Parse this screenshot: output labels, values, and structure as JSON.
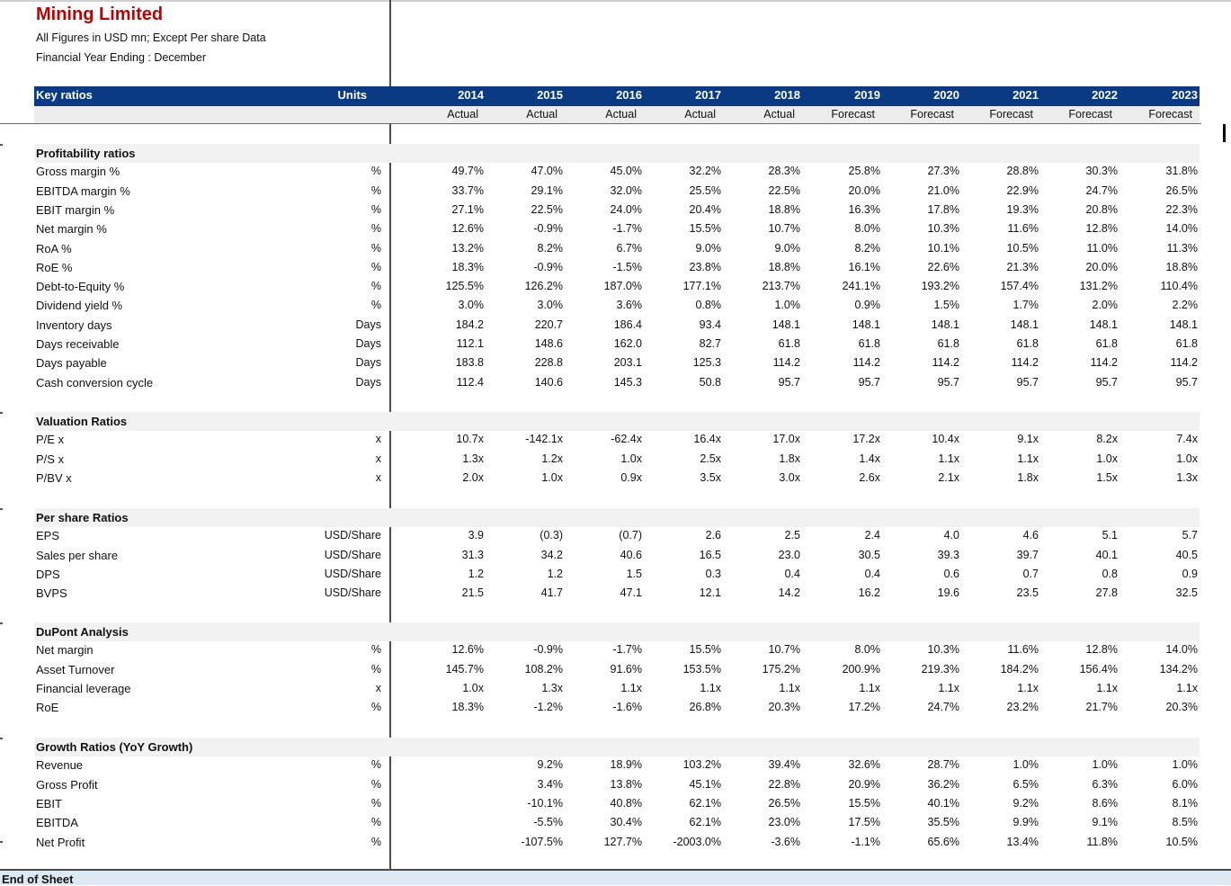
{
  "header": {
    "title": "Mining Limited",
    "subtitle1": "All Figures in USD mn; Except Per share Data",
    "subtitle2": "Financial Year Ending : December",
    "key_ratios_label": "Key ratios",
    "units_label": "Units",
    "years": [
      "2014",
      "2015",
      "2016",
      "2017",
      "2018",
      "2019",
      "2020",
      "2021",
      "2022",
      "2023"
    ],
    "status": [
      "Actual",
      "Actual",
      "Actual",
      "Actual",
      "Actual",
      "Forecast",
      "Forecast",
      "Forecast",
      "Forecast",
      "Forecast"
    ]
  },
  "sections": [
    {
      "title": "Profitability ratios",
      "rows": [
        {
          "label": "Gross margin %",
          "unit": "%",
          "values": [
            "49.7%",
            "47.0%",
            "45.0%",
            "32.2%",
            "28.3%",
            "25.8%",
            "27.3%",
            "28.8%",
            "30.3%",
            "31.8%"
          ]
        },
        {
          "label": "EBITDA margin %",
          "unit": "%",
          "values": [
            "33.7%",
            "29.1%",
            "32.0%",
            "25.5%",
            "22.5%",
            "20.0%",
            "21.0%",
            "22.9%",
            "24.7%",
            "26.5%"
          ]
        },
        {
          "label": "EBIT margin %",
          "unit": "%",
          "values": [
            "27.1%",
            "22.5%",
            "24.0%",
            "20.4%",
            "18.8%",
            "16.3%",
            "17.8%",
            "19.3%",
            "20.8%",
            "22.3%"
          ]
        },
        {
          "label": "Net margin %",
          "unit": "%",
          "values": [
            "12.6%",
            "-0.9%",
            "-1.7%",
            "15.5%",
            "10.7%",
            "8.0%",
            "10.3%",
            "11.6%",
            "12.8%",
            "14.0%"
          ]
        },
        {
          "label": "RoA %",
          "unit": "%",
          "values": [
            "13.2%",
            "8.2%",
            "6.7%",
            "9.0%",
            "9.0%",
            "8.2%",
            "10.1%",
            "10.5%",
            "11.0%",
            "11.3%"
          ]
        },
        {
          "label": "RoE %",
          "unit": "%",
          "values": [
            "18.3%",
            "-0.9%",
            "-1.5%",
            "23.8%",
            "18.8%",
            "16.1%",
            "22.6%",
            "21.3%",
            "20.0%",
            "18.8%"
          ]
        },
        {
          "label": "Debt-to-Equity %",
          "unit": "%",
          "values": [
            "125.5%",
            "126.2%",
            "187.0%",
            "177.1%",
            "213.7%",
            "241.1%",
            "193.2%",
            "157.4%",
            "131.2%",
            "110.4%"
          ]
        },
        {
          "label": "Dividend yield %",
          "unit": "%",
          "values": [
            "3.0%",
            "3.0%",
            "3.6%",
            "0.8%",
            "1.0%",
            "0.9%",
            "1.5%",
            "1.7%",
            "2.0%",
            "2.2%"
          ]
        },
        {
          "label": "Inventory days",
          "unit": "Days",
          "values": [
            "184.2",
            "220.7",
            "186.4",
            "93.4",
            "148.1",
            "148.1",
            "148.1",
            "148.1",
            "148.1",
            "148.1"
          ]
        },
        {
          "label": "Days receivable",
          "unit": "Days",
          "values": [
            "112.1",
            "148.6",
            "162.0",
            "82.7",
            "61.8",
            "61.8",
            "61.8",
            "61.8",
            "61.8",
            "61.8"
          ]
        },
        {
          "label": "Days payable",
          "unit": "Days",
          "values": [
            "183.8",
            "228.8",
            "203.1",
            "125.3",
            "114.2",
            "114.2",
            "114.2",
            "114.2",
            "114.2",
            "114.2"
          ]
        },
        {
          "label": "Cash conversion cycle",
          "unit": "Days",
          "values": [
            "112.4",
            "140.6",
            "145.3",
            "50.8",
            "95.7",
            "95.7",
            "95.7",
            "95.7",
            "95.7",
            "95.7"
          ]
        }
      ]
    },
    {
      "title": "Valuation Ratios",
      "rows": [
        {
          "label": "P/E x",
          "unit": "x",
          "values": [
            "10.7x",
            "-142.1x",
            "-62.4x",
            "16.4x",
            "17.0x",
            "17.2x",
            "10.4x",
            "9.1x",
            "8.2x",
            "7.4x"
          ]
        },
        {
          "label": "P/S x",
          "unit": "x",
          "values": [
            "1.3x",
            "1.2x",
            "1.0x",
            "2.5x",
            "1.8x",
            "1.4x",
            "1.1x",
            "1.1x",
            "1.0x",
            "1.0x"
          ]
        },
        {
          "label": "P/BV x",
          "unit": "x",
          "values": [
            "2.0x",
            "1.0x",
            "0.9x",
            "3.5x",
            "3.0x",
            "2.6x",
            "2.1x",
            "1.8x",
            "1.5x",
            "1.3x"
          ]
        }
      ]
    },
    {
      "title": "Per share Ratios",
      "rows": [
        {
          "label": "EPS",
          "unit": "USD/Share",
          "values": [
            "3.9",
            "(0.3)",
            "(0.7)",
            "2.6",
            "2.5",
            "2.4",
            "4.0",
            "4.6",
            "5.1",
            "5.7"
          ]
        },
        {
          "label": "Sales per share",
          "unit": "USD/Share",
          "values": [
            "31.3",
            "34.2",
            "40.6",
            "16.5",
            "23.0",
            "30.5",
            "39.3",
            "39.7",
            "40.1",
            "40.5"
          ]
        },
        {
          "label": "DPS",
          "unit": "USD/Share",
          "values": [
            "1.2",
            "1.2",
            "1.5",
            "0.3",
            "0.4",
            "0.4",
            "0.6",
            "0.7",
            "0.8",
            "0.9"
          ]
        },
        {
          "label": "BVPS",
          "unit": "USD/Share",
          "values": [
            "21.5",
            "41.7",
            "47.1",
            "12.1",
            "14.2",
            "16.2",
            "19.6",
            "23.5",
            "27.8",
            "32.5"
          ]
        }
      ]
    },
    {
      "title": "DuPont Analysis",
      "rows": [
        {
          "label": "Net margin",
          "unit": "%",
          "values": [
            "12.6%",
            "-0.9%",
            "-1.7%",
            "15.5%",
            "10.7%",
            "8.0%",
            "10.3%",
            "11.6%",
            "12.8%",
            "14.0%"
          ]
        },
        {
          "label": "Asset Turnover",
          "unit": "%",
          "values": [
            "145.7%",
            "108.2%",
            "91.6%",
            "153.5%",
            "175.2%",
            "200.9%",
            "219.3%",
            "184.2%",
            "156.4%",
            "134.2%"
          ]
        },
        {
          "label": "Financial leverage",
          "unit": "x",
          "values": [
            "1.0x",
            "1.3x",
            "1.1x",
            "1.1x",
            "1.1x",
            "1.1x",
            "1.1x",
            "1.1x",
            "1.1x",
            "1.1x"
          ]
        },
        {
          "label": "RoE",
          "unit": "%",
          "values": [
            "18.3%",
            "-1.2%",
            "-1.6%",
            "26.8%",
            "20.3%",
            "17.2%",
            "24.7%",
            "23.2%",
            "21.7%",
            "20.3%"
          ]
        }
      ]
    },
    {
      "title": "Growth Ratios (YoY Growth)",
      "rows": [
        {
          "label": "Revenue",
          "unit": "%",
          "values": [
            "",
            "9.2%",
            "18.9%",
            "103.2%",
            "39.4%",
            "32.6%",
            "28.7%",
            "1.0%",
            "1.0%",
            "1.0%"
          ]
        },
        {
          "label": "Gross Profit",
          "unit": "%",
          "values": [
            "",
            "3.4%",
            "13.8%",
            "45.1%",
            "22.8%",
            "20.9%",
            "36.2%",
            "6.5%",
            "6.3%",
            "6.0%"
          ]
        },
        {
          "label": "EBIT",
          "unit": "%",
          "values": [
            "",
            "-10.1%",
            "40.8%",
            "62.1%",
            "26.5%",
            "15.5%",
            "40.1%",
            "9.2%",
            "8.6%",
            "8.1%"
          ]
        },
        {
          "label": "EBITDA",
          "unit": "%",
          "values": [
            "",
            "-5.5%",
            "30.4%",
            "62.1%",
            "23.0%",
            "17.5%",
            "35.5%",
            "9.9%",
            "9.1%",
            "8.5%"
          ]
        },
        {
          "label": "Net Profit",
          "unit": "%",
          "values": [
            "",
            "-107.5%",
            "127.7%",
            "-2003.0%",
            "-3.6%",
            "-1.1%",
            "65.6%",
            "13.4%",
            "11.8%",
            "10.5%"
          ]
        }
      ]
    }
  ],
  "footer": {
    "end_label": "End of Sheet"
  }
}
